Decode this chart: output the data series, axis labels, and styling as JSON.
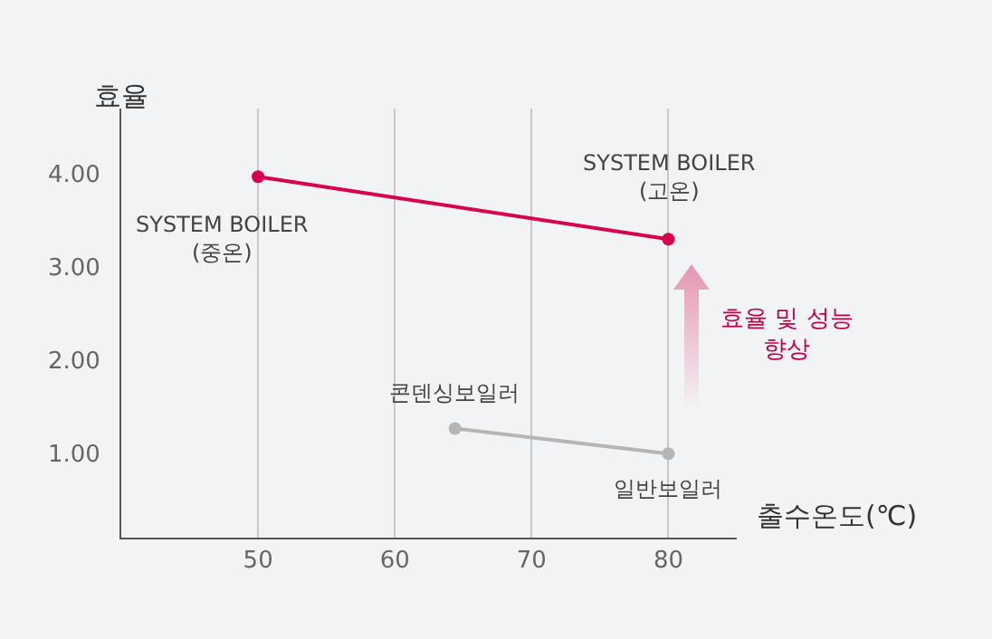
{
  "chart_data": {
    "type": "line",
    "xlabel": "출수온도(℃)",
    "ylabel": "효율",
    "xlim": [
      40,
      85
    ],
    "xticks": [
      50,
      60,
      70,
      80
    ],
    "ylim": [
      0.1,
      4.7
    ],
    "yticks": [
      {
        "value": 1,
        "label": "1.00"
      },
      {
        "value": 2,
        "label": "2.00"
      },
      {
        "value": 3,
        "label": "3.00"
      },
      {
        "value": 4,
        "label": "4.00"
      }
    ],
    "grid": "x",
    "marker": "circle",
    "line_style": "solid",
    "series": [
      {
        "color": "#d6004c",
        "x": [
          50,
          80
        ],
        "values": [
          3.97,
          3.3
        ]
      },
      {
        "color": "#b5b5b5",
        "x": [
          64.4,
          80
        ],
        "values": [
          1.27,
          1.0
        ]
      }
    ],
    "annotations": [
      {
        "text": "SYSTEM BOILER\n(중온)",
        "x": 50,
        "y": 3.97
      },
      {
        "text": "SYSTEM BOILER\n(고온)",
        "x": 80,
        "y": 3.3
      },
      {
        "text": "콘덴싱보일러",
        "x": 64.4,
        "y": 1.27
      },
      {
        "text": "일반보일러",
        "x": 80,
        "y": 1.0
      },
      "효율 및 성능\n향상"
    ]
  }
}
